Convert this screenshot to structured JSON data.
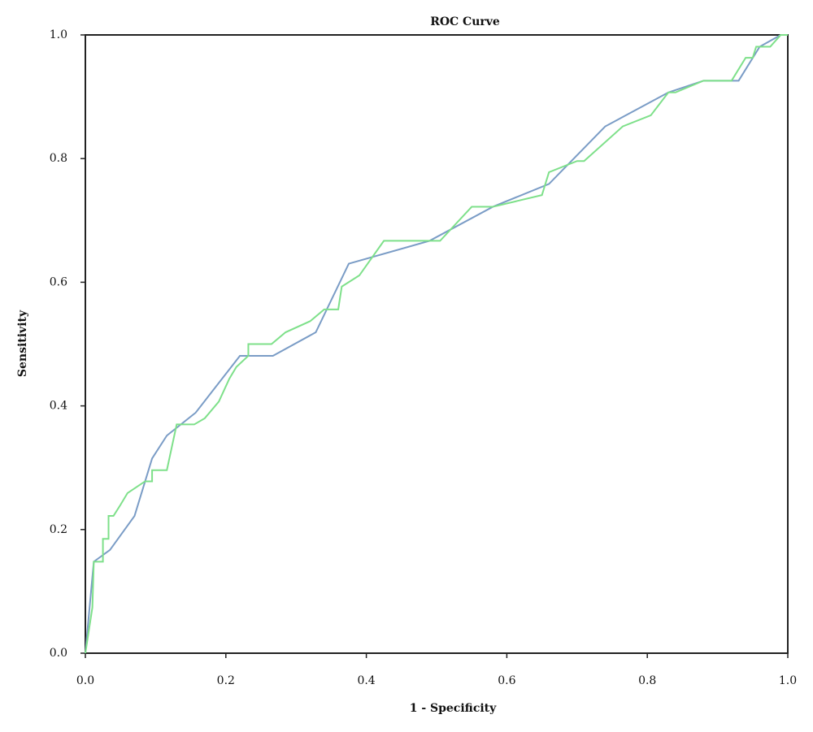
{
  "chart_data": {
    "type": "line",
    "title": "ROC Curve",
    "x_label": "1 - Specificity",
    "y_label": "Sensitivity",
    "xlim": [
      0,
      1
    ],
    "ylim": [
      0,
      1
    ],
    "xticks": [
      {
        "value": 0,
        "label": "0.0"
      },
      0.2,
      0.4,
      0.6,
      0.8,
      {
        "value": 1,
        "label": "1.0"
      }
    ],
    "yticks": [
      {
        "value": 0,
        "label": "0.0"
      },
      0.2,
      0.4,
      0.6,
      0.8,
      {
        "value": 1,
        "label": "1.0"
      }
    ],
    "grid": false,
    "series": [
      {
        "color": "#7a9cc6",
        "x": [
          0,
          0.012,
          0.035,
          0.07,
          0.095,
          0.116,
          0.157,
          0.22,
          0.267,
          0.328,
          0.375,
          0.49,
          0.58,
          0.66,
          0.74,
          0.83,
          0.88,
          0.93,
          0.96,
          0.99,
          1.0
        ],
        "values": [
          0,
          0.148,
          0.167,
          0.222,
          0.315,
          0.352,
          0.389,
          0.481,
          0.481,
          0.519,
          0.63,
          0.667,
          0.722,
          0.759,
          0.852,
          0.907,
          0.926,
          0.926,
          0.981,
          1.0,
          1.0
        ]
      },
      {
        "color": "#7ee08a",
        "x": [
          0,
          0.01,
          0.012,
          0.025,
          0.025,
          0.033,
          0.033,
          0.04,
          0.05,
          0.06,
          0.085,
          0.095,
          0.095,
          0.116,
          0.13,
          0.155,
          0.17,
          0.19,
          0.205,
          0.215,
          0.232,
          0.232,
          0.265,
          0.285,
          0.32,
          0.34,
          0.36,
          0.365,
          0.39,
          0.425,
          0.505,
          0.55,
          0.58,
          0.65,
          0.66,
          0.7,
          0.71,
          0.765,
          0.805,
          0.83,
          0.84,
          0.88,
          0.92,
          0.94,
          0.95,
          0.955,
          0.975,
          0.99,
          1.0
        ],
        "values": [
          0,
          0.074,
          0.148,
          0.148,
          0.185,
          0.185,
          0.222,
          0.222,
          0.24,
          0.259,
          0.278,
          0.278,
          0.296,
          0.296,
          0.37,
          0.37,
          0.38,
          0.407,
          0.444,
          0.463,
          0.481,
          0.5,
          0.5,
          0.519,
          0.537,
          0.556,
          0.556,
          0.593,
          0.611,
          0.667,
          0.667,
          0.722,
          0.722,
          0.741,
          0.778,
          0.796,
          0.796,
          0.852,
          0.87,
          0.907,
          0.907,
          0.926,
          0.926,
          0.963,
          0.963,
          0.981,
          0.981,
          1.0,
          1.0
        ]
      }
    ]
  }
}
